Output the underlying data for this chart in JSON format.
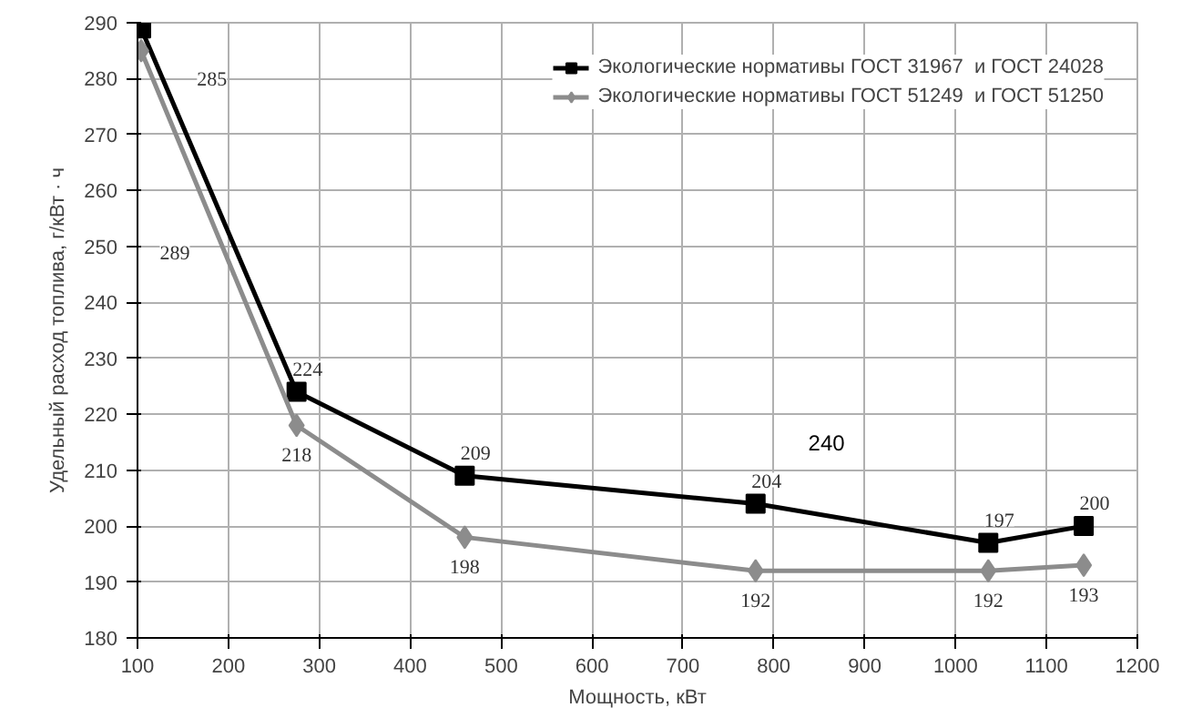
{
  "chart_data": {
    "type": "line",
    "xlabel": "Мощность, кВт",
    "ylabel": "Удельный расход топлива, г/кВт · ч",
    "xlim": [
      100,
      1200
    ],
    "xticks": [
      100,
      200,
      300,
      400,
      500,
      600,
      700,
      800,
      900,
      1000,
      1100,
      1200
    ],
    "ylim": [
      180,
      290
    ],
    "yticks": [
      180,
      190,
      200,
      210,
      220,
      230,
      240,
      250,
      260,
      270,
      280,
      290
    ],
    "grid": true,
    "legend": "top right",
    "series": [
      {
        "name": "Экологические нормативы ГОСТ 31967  и ГОСТ 24028",
        "color": "#000000",
        "marker": "square",
        "x": [
          104,
          275,
          460,
          780,
          1036,
          1141
        ],
        "values": [
          289,
          224,
          209,
          204,
          197,
          200
        ],
        "value_labels": [
          null,
          "224",
          "209",
          "204",
          "197",
          "200"
        ]
      },
      {
        "name": "Экологические нормативы ГОСТ 51249  и ГОСТ 51250",
        "color": "#8c8c8c",
        "marker": "diamond",
        "x": [
          104,
          275,
          460,
          780,
          1036,
          1141
        ],
        "values": [
          285,
          218,
          198,
          192,
          192,
          193
        ],
        "value_labels": [
          null,
          "218",
          "198",
          "192",
          "192",
          "193"
        ]
      }
    ],
    "annotations": [
      {
        "text": "285",
        "x": 182,
        "y": 280
      },
      {
        "text": "289",
        "x": 141,
        "y": 249
      },
      {
        "text": "240",
        "x": 858,
        "y": 215
      }
    ]
  }
}
